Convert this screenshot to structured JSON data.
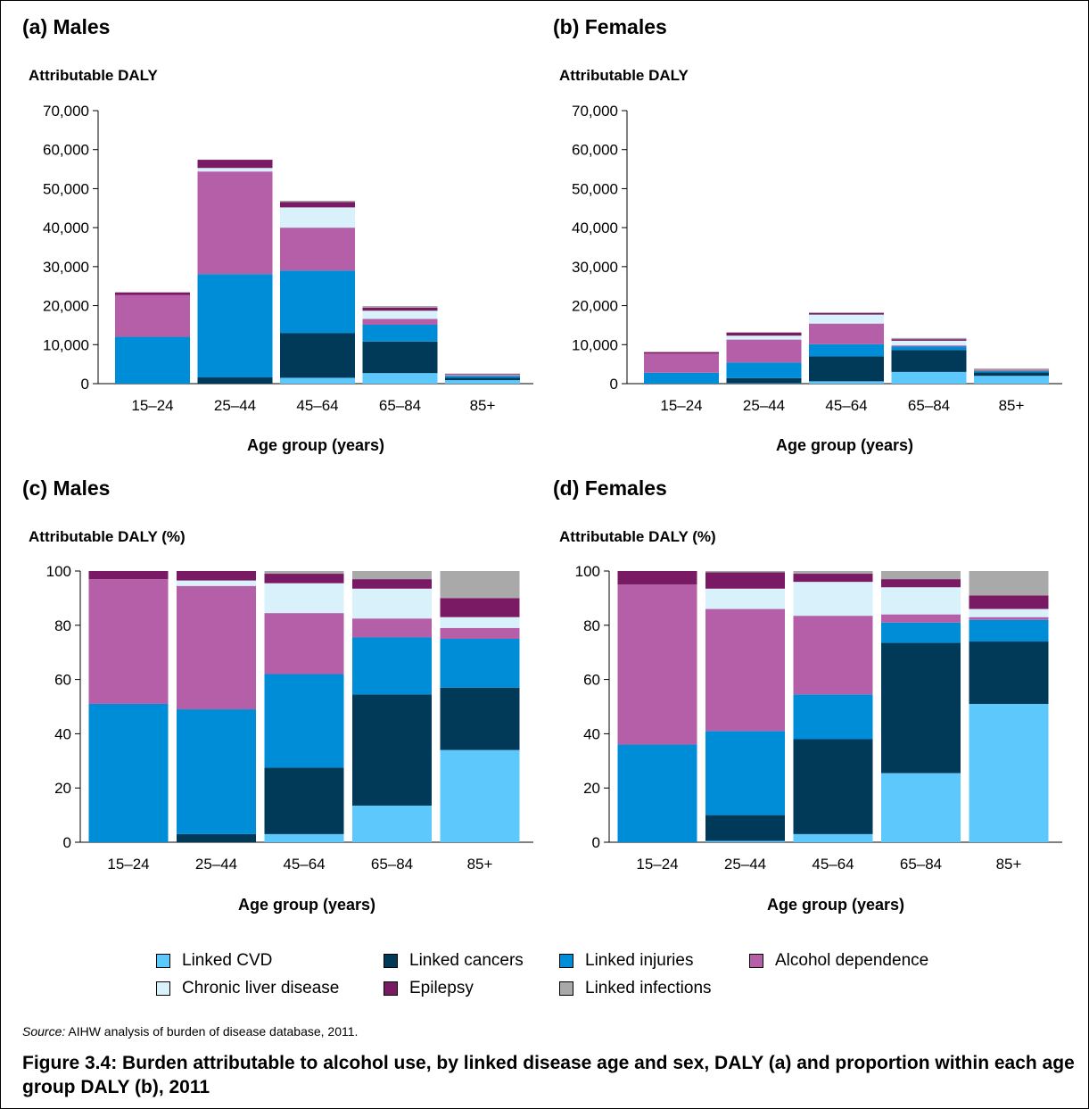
{
  "legend": [
    {
      "key": "cvd",
      "label": "Linked CVD",
      "color": "#5dc8fc"
    },
    {
      "key": "cancers",
      "label": "Linked cancers",
      "color": "#003a58"
    },
    {
      "key": "injuries",
      "label": "Linked injuries",
      "color": "#008dd8"
    },
    {
      "key": "alcohol",
      "label": "Alcohol dependence",
      "color": "#b45fa8"
    },
    {
      "key": "liver",
      "label": "Chronic liver disease",
      "color": "#d8f1fb"
    },
    {
      "key": "epilepsy",
      "label": "Epilepsy",
      "color": "#7a1964"
    },
    {
      "key": "infections",
      "label": "Linked infections",
      "color": "#a9a9a9"
    }
  ],
  "source": {
    "prefix": "Source:",
    "text": " AIHW analysis of burden of disease database, 2011."
  },
  "caption": "Figure 3.4: Burden attributable to alcohol use, by linked disease age and sex, DALY (a) and proportion within each age group DALY (b), 2011",
  "chart_data": [
    {
      "type": "bar",
      "stacked": true,
      "title": "(a) Males",
      "ylabel": "Attributable DALY",
      "xlabel": "Age group (years)",
      "categories": [
        "15–24",
        "25–44",
        "45–64",
        "65–84",
        "85+"
      ],
      "ylim": [
        0,
        70000
      ],
      "yticks": [
        0,
        10000,
        20000,
        30000,
        40000,
        50000,
        60000,
        70000
      ],
      "ytick_labels": [
        "0",
        "10,000",
        "20,000",
        "30,000",
        "40,000",
        "50,000",
        "60,000",
        "70,000"
      ],
      "series": [
        {
          "key": "cvd",
          "name": "Linked CVD",
          "values": [
            0,
            0,
            1500,
            2700,
            900
          ]
        },
        {
          "key": "cancers",
          "name": "Linked cancers",
          "values": [
            0,
            1600,
            11500,
            8100,
            600
          ]
        },
        {
          "key": "injuries",
          "name": "Linked injuries",
          "values": [
            12000,
            26500,
            16000,
            4300,
            500
          ]
        },
        {
          "key": "alcohol",
          "name": "Alcohol dependence",
          "values": [
            10700,
            26300,
            11000,
            1500,
            100
          ]
        },
        {
          "key": "liver",
          "name": "Chronic liver disease",
          "values": [
            0,
            900,
            5200,
            2100,
            100
          ]
        },
        {
          "key": "epilepsy",
          "name": "Epilepsy",
          "values": [
            700,
            2100,
            1400,
            800,
            200
          ]
        },
        {
          "key": "infections",
          "name": "Linked infections",
          "values": [
            0,
            0,
            300,
            400,
            200
          ]
        }
      ]
    },
    {
      "type": "bar",
      "stacked": true,
      "title": "(b) Females",
      "ylabel": "Attributable DALY",
      "xlabel": "Age group (years)",
      "categories": [
        "15–24",
        "25–44",
        "45–64",
        "65–84",
        "85+"
      ],
      "ylim": [
        0,
        70000
      ],
      "yticks": [
        0,
        10000,
        20000,
        30000,
        40000,
        50000,
        60000,
        70000
      ],
      "ytick_labels": [
        "0",
        "10,000",
        "20,000",
        "30,000",
        "40,000",
        "50,000",
        "60,000",
        "70,000"
      ],
      "series": [
        {
          "key": "cvd",
          "name": "Linked CVD",
          "values": [
            0,
            100,
            600,
            3000,
            2000
          ]
        },
        {
          "key": "cancers",
          "name": "Linked cancers",
          "values": [
            0,
            1300,
            6400,
            5600,
            900
          ]
        },
        {
          "key": "injuries",
          "name": "Linked injuries",
          "values": [
            2800,
            4000,
            3100,
            900,
            300
          ]
        },
        {
          "key": "alcohol",
          "name": "Alcohol dependence",
          "values": [
            4900,
            5900,
            5300,
            300,
            0
          ]
        },
        {
          "key": "liver",
          "name": "Chronic liver disease",
          "values": [
            0,
            1000,
            2300,
            1200,
            100
          ]
        },
        {
          "key": "epilepsy",
          "name": "Epilepsy",
          "values": [
            400,
            800,
            400,
            400,
            200
          ]
        },
        {
          "key": "infections",
          "name": "Linked infections",
          "values": [
            0,
            100,
            200,
            300,
            400
          ]
        }
      ]
    },
    {
      "type": "bar",
      "stacked": true,
      "title": "(c) Males",
      "ylabel": "Attributable DALY (%)",
      "xlabel": "Age group (years)",
      "categories": [
        "15–24",
        "25–44",
        "45–64",
        "65–84",
        "85+"
      ],
      "ylim": [
        0,
        100
      ],
      "yticks": [
        0,
        20,
        40,
        60,
        80,
        100
      ],
      "ytick_labels": [
        "0",
        "20",
        "40",
        "60",
        "80",
        "100"
      ],
      "series": [
        {
          "key": "cvd",
          "name": "Linked CVD",
          "values": [
            0,
            0,
            3,
            13.5,
            34
          ]
        },
        {
          "key": "cancers",
          "name": "Linked cancers",
          "values": [
            0,
            3,
            24.5,
            41,
            23
          ]
        },
        {
          "key": "injuries",
          "name": "Linked injuries",
          "values": [
            51,
            46,
            34.5,
            21,
            18
          ]
        },
        {
          "key": "alcohol",
          "name": "Alcohol dependence",
          "values": [
            46,
            45.5,
            22.5,
            7,
            4
          ]
        },
        {
          "key": "liver",
          "name": "Chronic liver disease",
          "values": [
            0,
            2,
            11,
            11,
            4
          ]
        },
        {
          "key": "epilepsy",
          "name": "Epilepsy",
          "values": [
            3,
            3.5,
            3.5,
            3.5,
            7
          ]
        },
        {
          "key": "infections",
          "name": "Linked infections",
          "values": [
            0,
            0,
            1,
            3,
            10
          ]
        }
      ]
    },
    {
      "type": "bar",
      "stacked": true,
      "title": "(d) Females",
      "ylabel": "Attributable DALY (%)",
      "xlabel": "Age group (years)",
      "categories": [
        "15–24",
        "25–44",
        "45–64",
        "65–84",
        "85+"
      ],
      "ylim": [
        0,
        100
      ],
      "yticks": [
        0,
        20,
        40,
        60,
        80,
        100
      ],
      "ytick_labels": [
        "0",
        "20",
        "40",
        "60",
        "80",
        "100"
      ],
      "series": [
        {
          "key": "cvd",
          "name": "Linked CVD",
          "values": [
            0,
            0.5,
            3,
            25.5,
            51
          ]
        },
        {
          "key": "cancers",
          "name": "Linked cancers",
          "values": [
            0,
            9.5,
            35,
            48,
            23
          ]
        },
        {
          "key": "injuries",
          "name": "Linked injuries",
          "values": [
            36,
            31,
            16.5,
            7.5,
            8
          ]
        },
        {
          "key": "alcohol",
          "name": "Alcohol dependence",
          "values": [
            59,
            45,
            29,
            3,
            1
          ]
        },
        {
          "key": "liver",
          "name": "Chronic liver disease",
          "values": [
            0,
            7.5,
            12.5,
            10,
            3
          ]
        },
        {
          "key": "epilepsy",
          "name": "Epilepsy",
          "values": [
            5,
            6,
            3,
            3,
            5
          ]
        },
        {
          "key": "infections",
          "name": "Linked infections",
          "values": [
            0,
            0.5,
            1,
            3,
            9
          ]
        }
      ]
    }
  ]
}
